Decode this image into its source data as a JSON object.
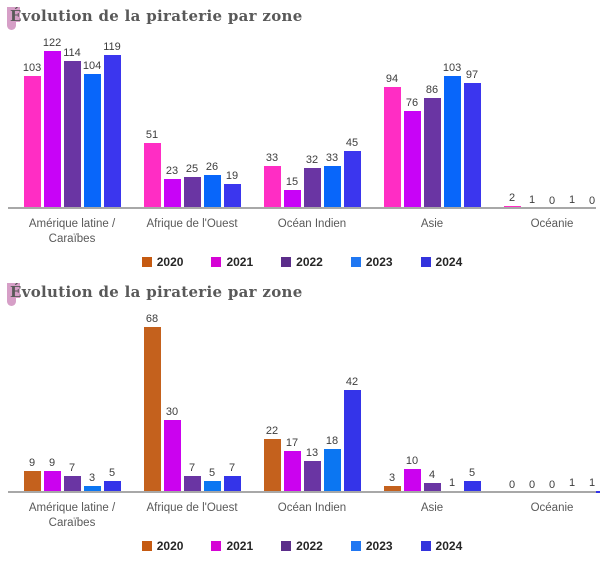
{
  "styles": {
    "axis_color": "#a8a8a8",
    "title_color": "#595959",
    "title_mark_color": "#d69fc7",
    "category_label_color": "#595959",
    "value_label_color": "#3d3d3d"
  },
  "chart_data": [
    {
      "type": "bar",
      "title": "Évolution de la piraterie par zone",
      "categories": [
        "Amérique latine / Caraïbes",
        "Afrique de l'Ouest",
        "Océan Indien",
        "Asie",
        "Océanie"
      ],
      "series": [
        {
          "name": "2020",
          "color": "#ff2dc4",
          "values": [
            103,
            51,
            33,
            94,
            2
          ]
        },
        {
          "name": "2021",
          "color": "#c803f7",
          "values": [
            122,
            23,
            15,
            76,
            1
          ]
        },
        {
          "name": "2022",
          "color": "#6a35a3",
          "values": [
            114,
            25,
            32,
            86,
            0
          ]
        },
        {
          "name": "2023",
          "color": "#0866fa",
          "values": [
            104,
            26,
            33,
            103,
            1
          ]
        },
        {
          "name": "2024",
          "color": "#3b36ee",
          "values": [
            119,
            19,
            45,
            97,
            0
          ]
        }
      ],
      "legend": [
        {
          "label": "2020",
          "color": "#c55a11"
        },
        {
          "label": "2021",
          "color": "#d503d5"
        },
        {
          "label": "2022",
          "color": "#5b2d8a"
        },
        {
          "label": "2023",
          "color": "#2077f2"
        },
        {
          "label": "2024",
          "color": "#3333dd"
        }
      ],
      "ylim": [
        0,
        130
      ],
      "data_labels": true,
      "grid": false,
      "legend_position": "bottom"
    },
    {
      "type": "bar",
      "title": "Évolution de la piraterie par zone",
      "categories": [
        "Amérique latine / Caraïbes",
        "Afrique de l'Ouest",
        "Océan Indien",
        "Asie",
        "Océanie"
      ],
      "series": [
        {
          "name": "2020",
          "color": "#c4611d",
          "values": [
            9,
            68,
            22,
            3,
            0
          ]
        },
        {
          "name": "2021",
          "color": "#cb02ef",
          "values": [
            9,
            30,
            17,
            10,
            0
          ]
        },
        {
          "name": "2022",
          "color": "#6a35a3",
          "values": [
            7,
            7,
            13,
            4,
            0
          ]
        },
        {
          "name": "2023",
          "color": "#0b76f2",
          "values": [
            3,
            5,
            18,
            1,
            1
          ]
        },
        {
          "name": "2024",
          "color": "#3434e9",
          "values": [
            5,
            7,
            42,
            5,
            1
          ]
        }
      ],
      "legend": [
        {
          "label": "2020",
          "color": "#c55a11"
        },
        {
          "label": "2021",
          "color": "#d503d5"
        },
        {
          "label": "2022",
          "color": "#5b2d8a"
        },
        {
          "label": "2023",
          "color": "#2077f2"
        },
        {
          "label": "2024",
          "color": "#3333dd"
        }
      ],
      "ylim": [
        0,
        75
      ],
      "data_labels": true,
      "grid": false,
      "legend_position": "bottom"
    }
  ]
}
